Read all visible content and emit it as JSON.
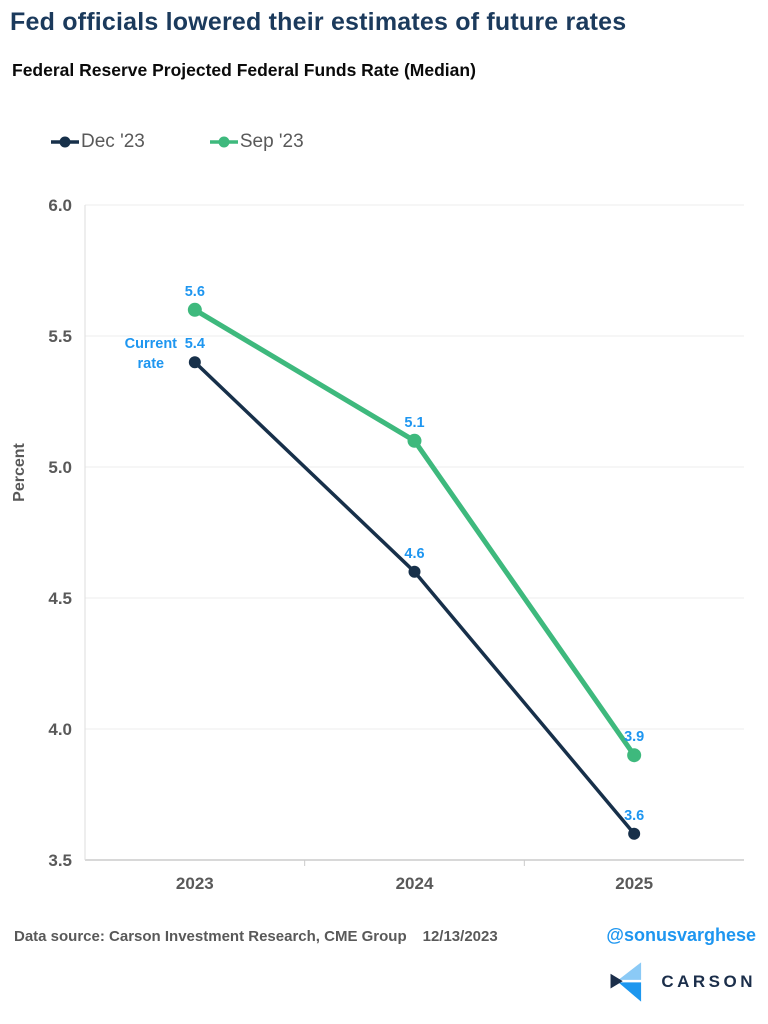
{
  "header": {
    "title": "Fed officials lowered their estimates of future rates"
  },
  "chart_data": {
    "type": "line",
    "title": "Federal Reserve Projected Federal Funds Rate (Median)",
    "categories": [
      "2023",
      "2024",
      "2025"
    ],
    "series": [
      {
        "name": "Dec '23",
        "color": "#17304a",
        "values": [
          5.4,
          4.6,
          3.6
        ],
        "line_width": 3.5,
        "marker_radius": 6
      },
      {
        "name": "Sep '23",
        "color": "#3eb97d",
        "values": [
          5.6,
          5.1,
          3.9
        ],
        "line_width": 5,
        "marker_radius": 7
      }
    ],
    "xlabel": "",
    "ylabel": "Percent",
    "ylim": [
      3.5,
      6.0
    ],
    "ytick_step": 0.5,
    "yticks": [
      "6.0",
      "5.5",
      "5.0",
      "4.5",
      "4.0",
      "3.5"
    ],
    "grid": "horizontal",
    "legend_position": "top-left",
    "data_label_color": "#1e96f0",
    "annotation": {
      "lines": [
        "Current",
        "rate"
      ],
      "target_series": "Dec '23",
      "target_category": "2023",
      "color": "#1e96f0"
    }
  },
  "footer": {
    "source": "Data source: Carson Investment Research, CME Group",
    "date": "12/13/2023",
    "handle": "@sonusvarghese"
  },
  "logo": {
    "text": "CARSON",
    "colors": {
      "light_blue": "#8bcaf6",
      "mid_blue": "#1d97ef",
      "navy": "#1b2e4a"
    }
  },
  "colors": {
    "title": "#1b3a5c",
    "axis_text": "#595959",
    "gridline": "#ececec",
    "axis_line": "#cbcbcb",
    "data_label": "#1e96f0"
  }
}
